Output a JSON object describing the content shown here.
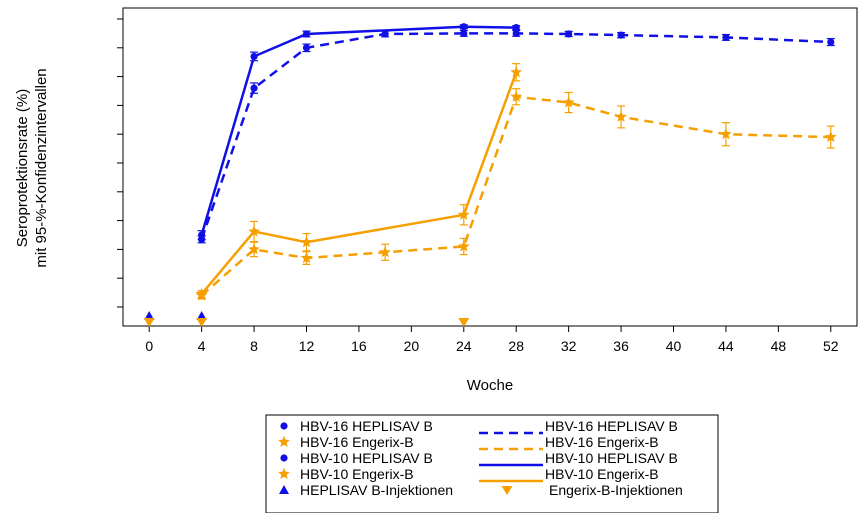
{
  "chart_data": {
    "type": "line",
    "title": "",
    "xlabel": "Woche",
    "ylabel_line1": "Seroprotektionsrate (%)",
    "ylabel_line2": "mit 95-%-Konfidenzintervallen",
    "x_ticks": [
      0,
      4,
      8,
      12,
      16,
      20,
      24,
      28,
      32,
      36,
      40,
      44,
      48,
      52
    ],
    "xlim": [
      -2,
      54
    ],
    "y_range": [
      -100,
      1000
    ],
    "y_ticks": [
      0,
      100,
      200,
      300,
      400,
      500,
      600,
      700,
      800,
      900,
      1000
    ],
    "grid": false,
    "colors": {
      "heplisav": "#1010e6",
      "engerix": "#f5a000"
    },
    "series": [
      {
        "name": "HBV-16 HEPLISAV B",
        "line_label": "HBV-16 HEPLISAV B",
        "color": "#1010e6",
        "style": "dashed",
        "marker": "dot",
        "x": [
          4,
          8,
          12,
          18,
          24,
          28,
          32,
          36,
          44,
          52
        ],
        "y": [
          235,
          760,
          900,
          948,
          950,
          950,
          948,
          944,
          936,
          920
        ],
        "err": [
          12,
          18,
          13,
          10,
          10,
          10,
          9,
          9,
          10,
          12
        ]
      },
      {
        "name": "HBV-16 Engerix-B",
        "line_label": "HBV-16 Engerix-B",
        "color": "#f5a000",
        "style": "dashed",
        "marker": "star",
        "x": [
          4,
          8,
          12,
          18,
          24,
          28,
          32,
          36,
          44,
          52
        ],
        "y": [
          40,
          200,
          170,
          190,
          210,
          730,
          710,
          660,
          600,
          590
        ],
        "err": [
          12,
          25,
          22,
          28,
          28,
          28,
          35,
          38,
          40,
          38
        ]
      },
      {
        "name": "HBV-10 HEPLISAV B",
        "line_label": "HBV-10 HEPLISAV B",
        "color": "#1010e6",
        "style": "solid",
        "marker": "dot",
        "x": [
          4,
          8,
          12,
          24,
          28
        ],
        "y": [
          250,
          870,
          948,
          973,
          970
        ],
        "err": [
          15,
          15,
          10,
          7,
          7
        ]
      },
      {
        "name": "HBV-10 Engerix-B",
        "line_label": "HBV-10 Engerix-B",
        "color": "#f5a000",
        "style": "solid",
        "marker": "star",
        "x": [
          4,
          8,
          12,
          24,
          28
        ],
        "y": [
          45,
          262,
          225,
          320,
          815
        ],
        "err": [
          12,
          35,
          30,
          35,
          30
        ]
      }
    ],
    "injections": [
      {
        "name": "HEPLISAV B-Injektionen",
        "color": "#1010e6",
        "marker": "triangle-up",
        "x": [
          0,
          4
        ]
      },
      {
        "name": "Engerix-B-Injektionen",
        "color": "#f5a000",
        "marker": "triangle-down",
        "x": [
          0,
          4,
          24
        ]
      }
    ],
    "legend_position": "below"
  }
}
